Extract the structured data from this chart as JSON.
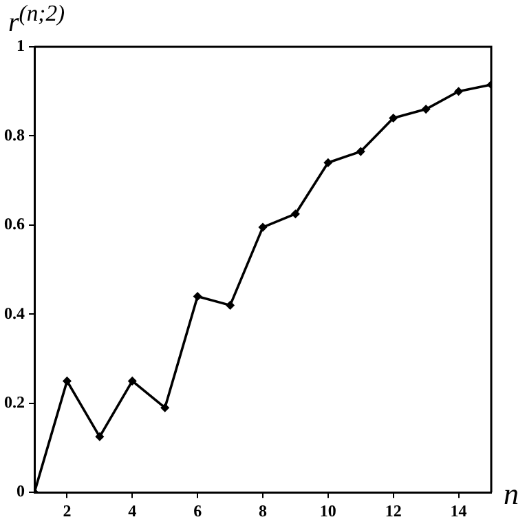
{
  "chart_data": {
    "type": "line",
    "xlabel": "n",
    "ylabel": "r$^{(n;2)}$",
    "x": [
      1,
      2,
      3,
      4,
      5,
      6,
      7,
      8,
      9,
      10,
      11,
      12,
      13,
      14,
      15
    ],
    "series": [
      {
        "color": "#000000",
        "values": [
          0,
          0.25,
          0.125,
          0.25,
          0.19,
          0.44,
          0.42,
          0.595,
          0.625,
          0.74,
          0.765,
          0.84,
          0.86,
          0.9,
          0.915
        ]
      }
    ],
    "xlim": [
      1,
      15
    ],
    "xticks": [
      2,
      4,
      6,
      8,
      10,
      12,
      14
    ],
    "ylim": [
      0,
      1
    ],
    "yticks": [
      0,
      0.2,
      0.4,
      0.6,
      0.8,
      1
    ],
    "grid": false,
    "legend": false,
    "marker": "diamond",
    "line_style": "solid"
  }
}
